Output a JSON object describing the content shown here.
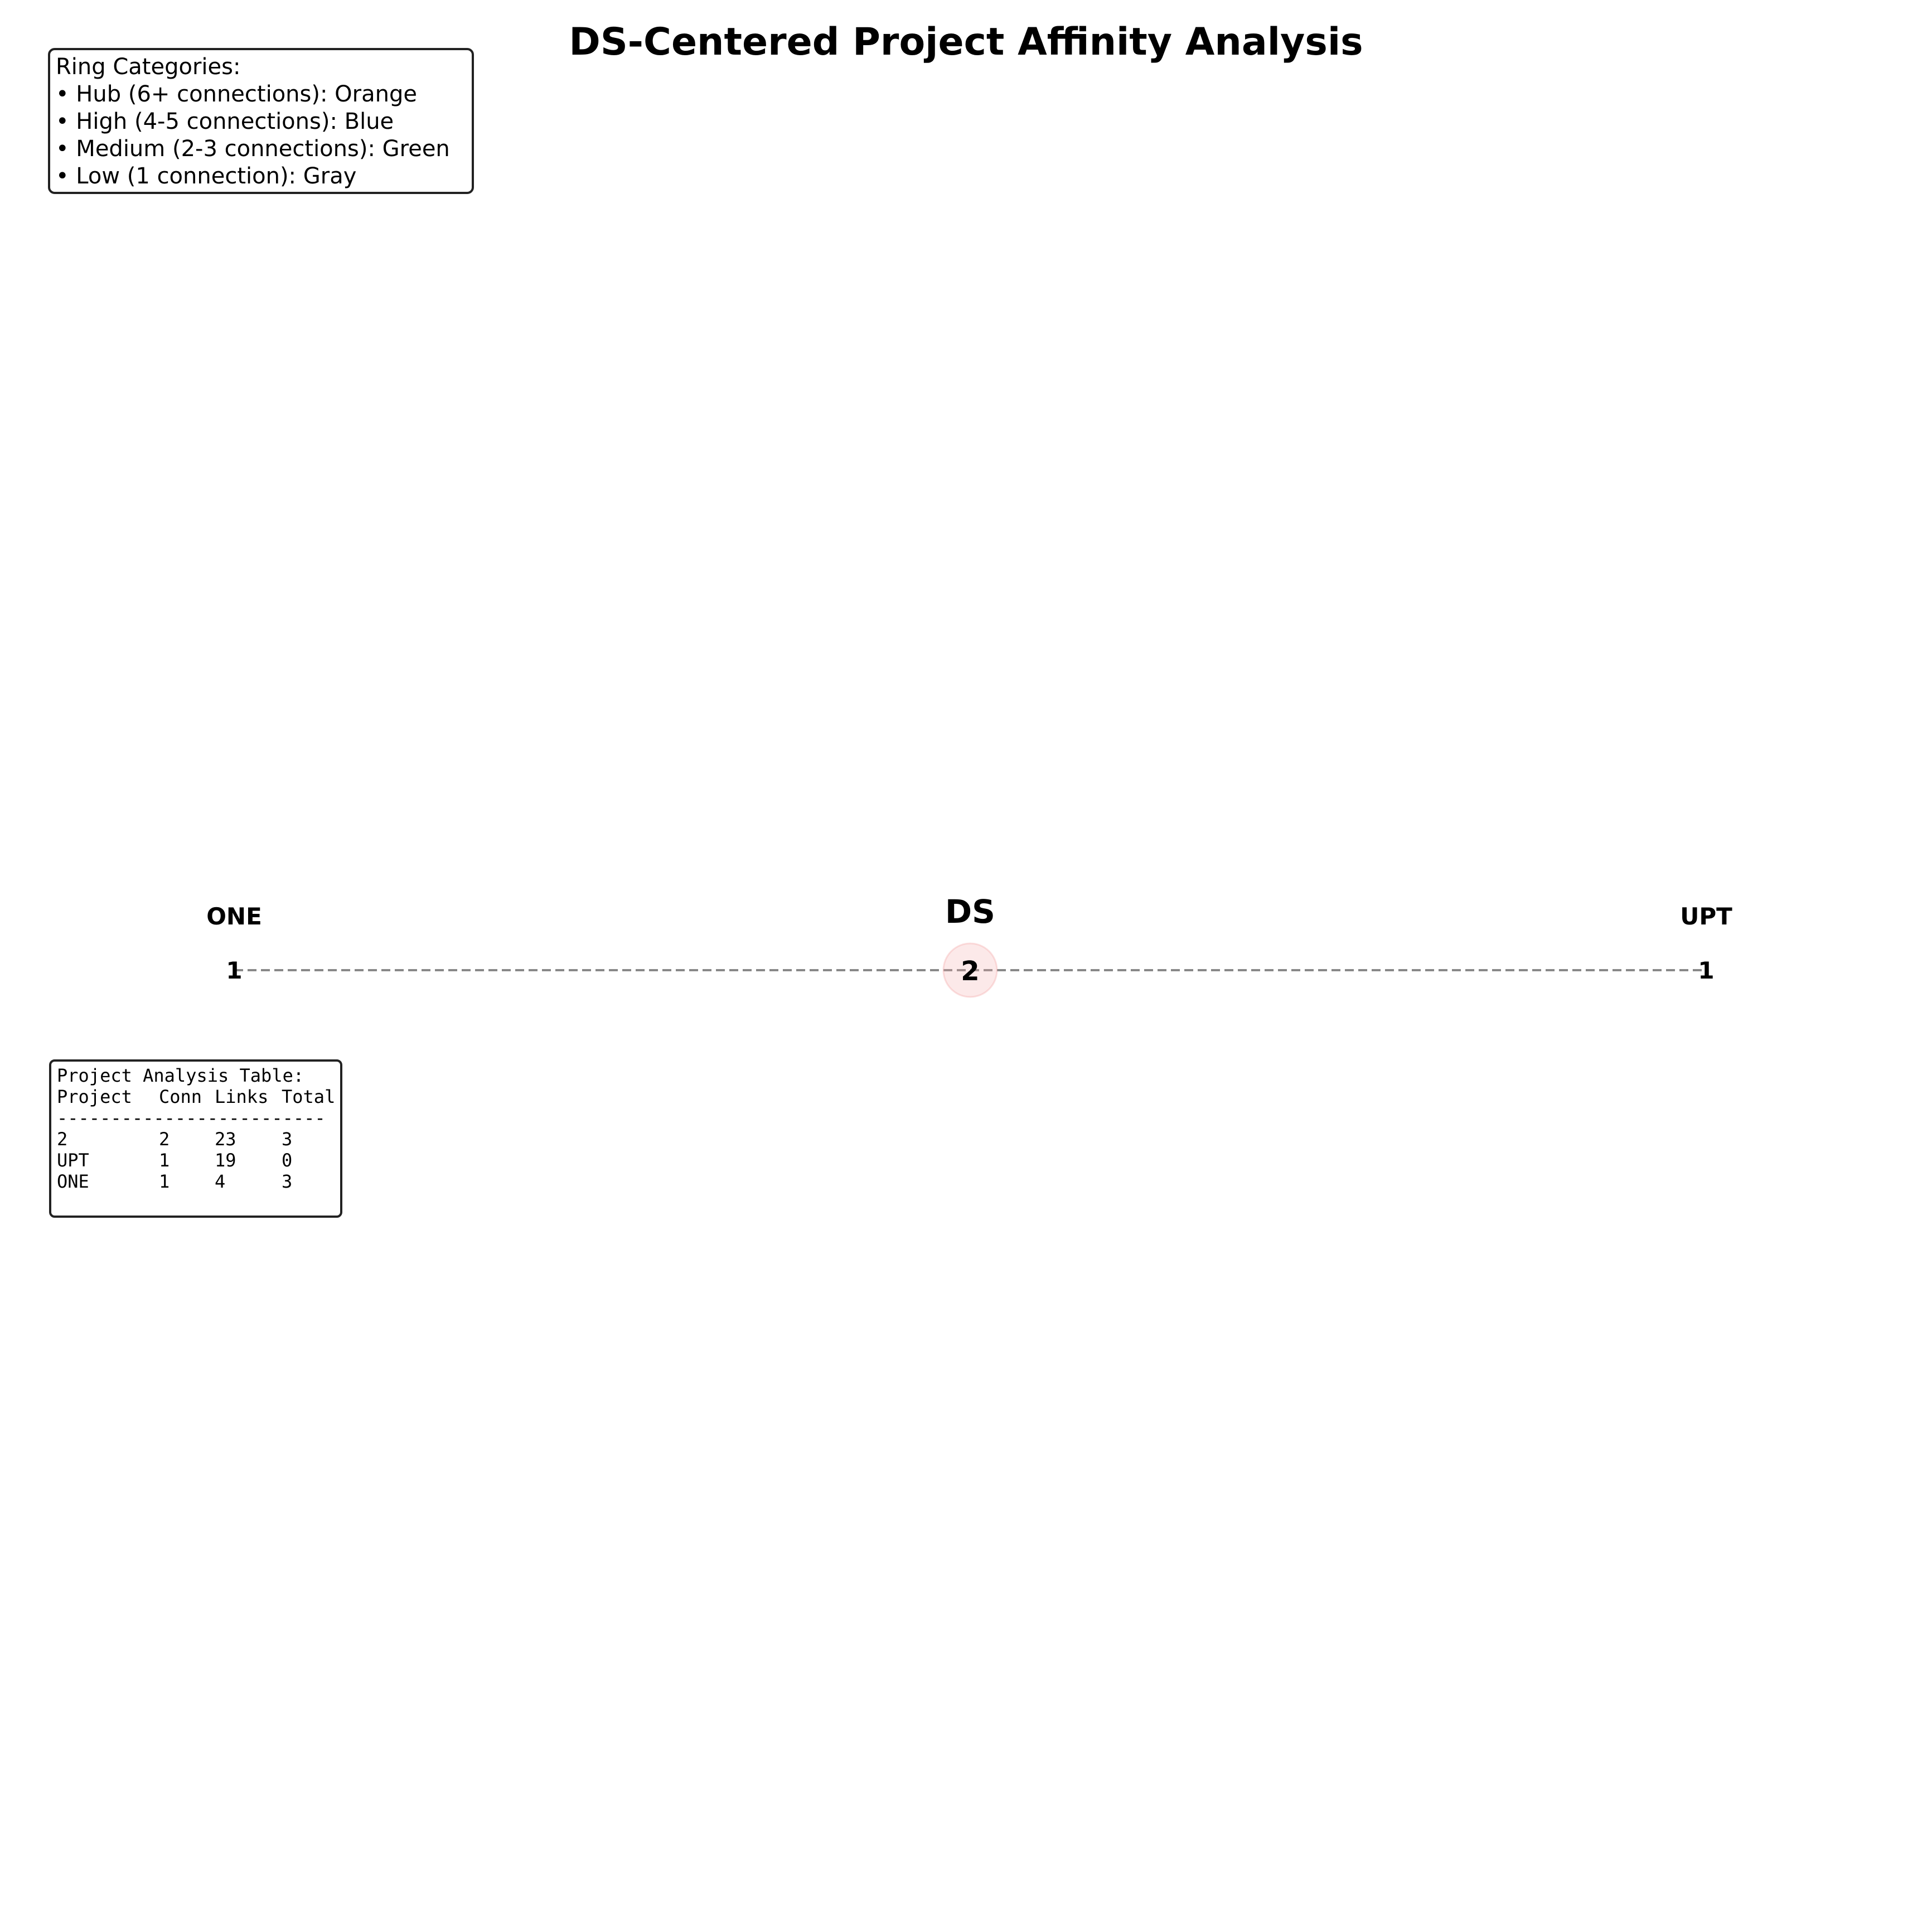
{
  "title": "DS-Centered Project Affinity Analysis",
  "legend": {
    "heading": "Ring Categories:",
    "items": [
      "• Hub (6+ connections): Orange",
      "• High (4-5 connections): Blue",
      "• Medium (2-3 connections): Green",
      "• Low (1 connection): Gray"
    ]
  },
  "table": {
    "heading": "Project Analysis Table:",
    "columns": [
      "Project",
      "Conn",
      "Links",
      "Total"
    ],
    "rule": "-------------------------",
    "rows": [
      [
        "2",
        "2",
        "23",
        "3"
      ],
      [
        "UPT",
        "1",
        "19",
        "0"
      ],
      [
        "ONE",
        "1",
        "4",
        "3"
      ]
    ]
  },
  "diagram": {
    "center": {
      "label": "DS",
      "value": "2",
      "color": "#f4a6a6"
    },
    "nodes": [
      {
        "label": "ONE",
        "value": "1"
      },
      {
        "label": "UPT",
        "value": "1"
      }
    ],
    "edge_color": "#888888"
  }
}
